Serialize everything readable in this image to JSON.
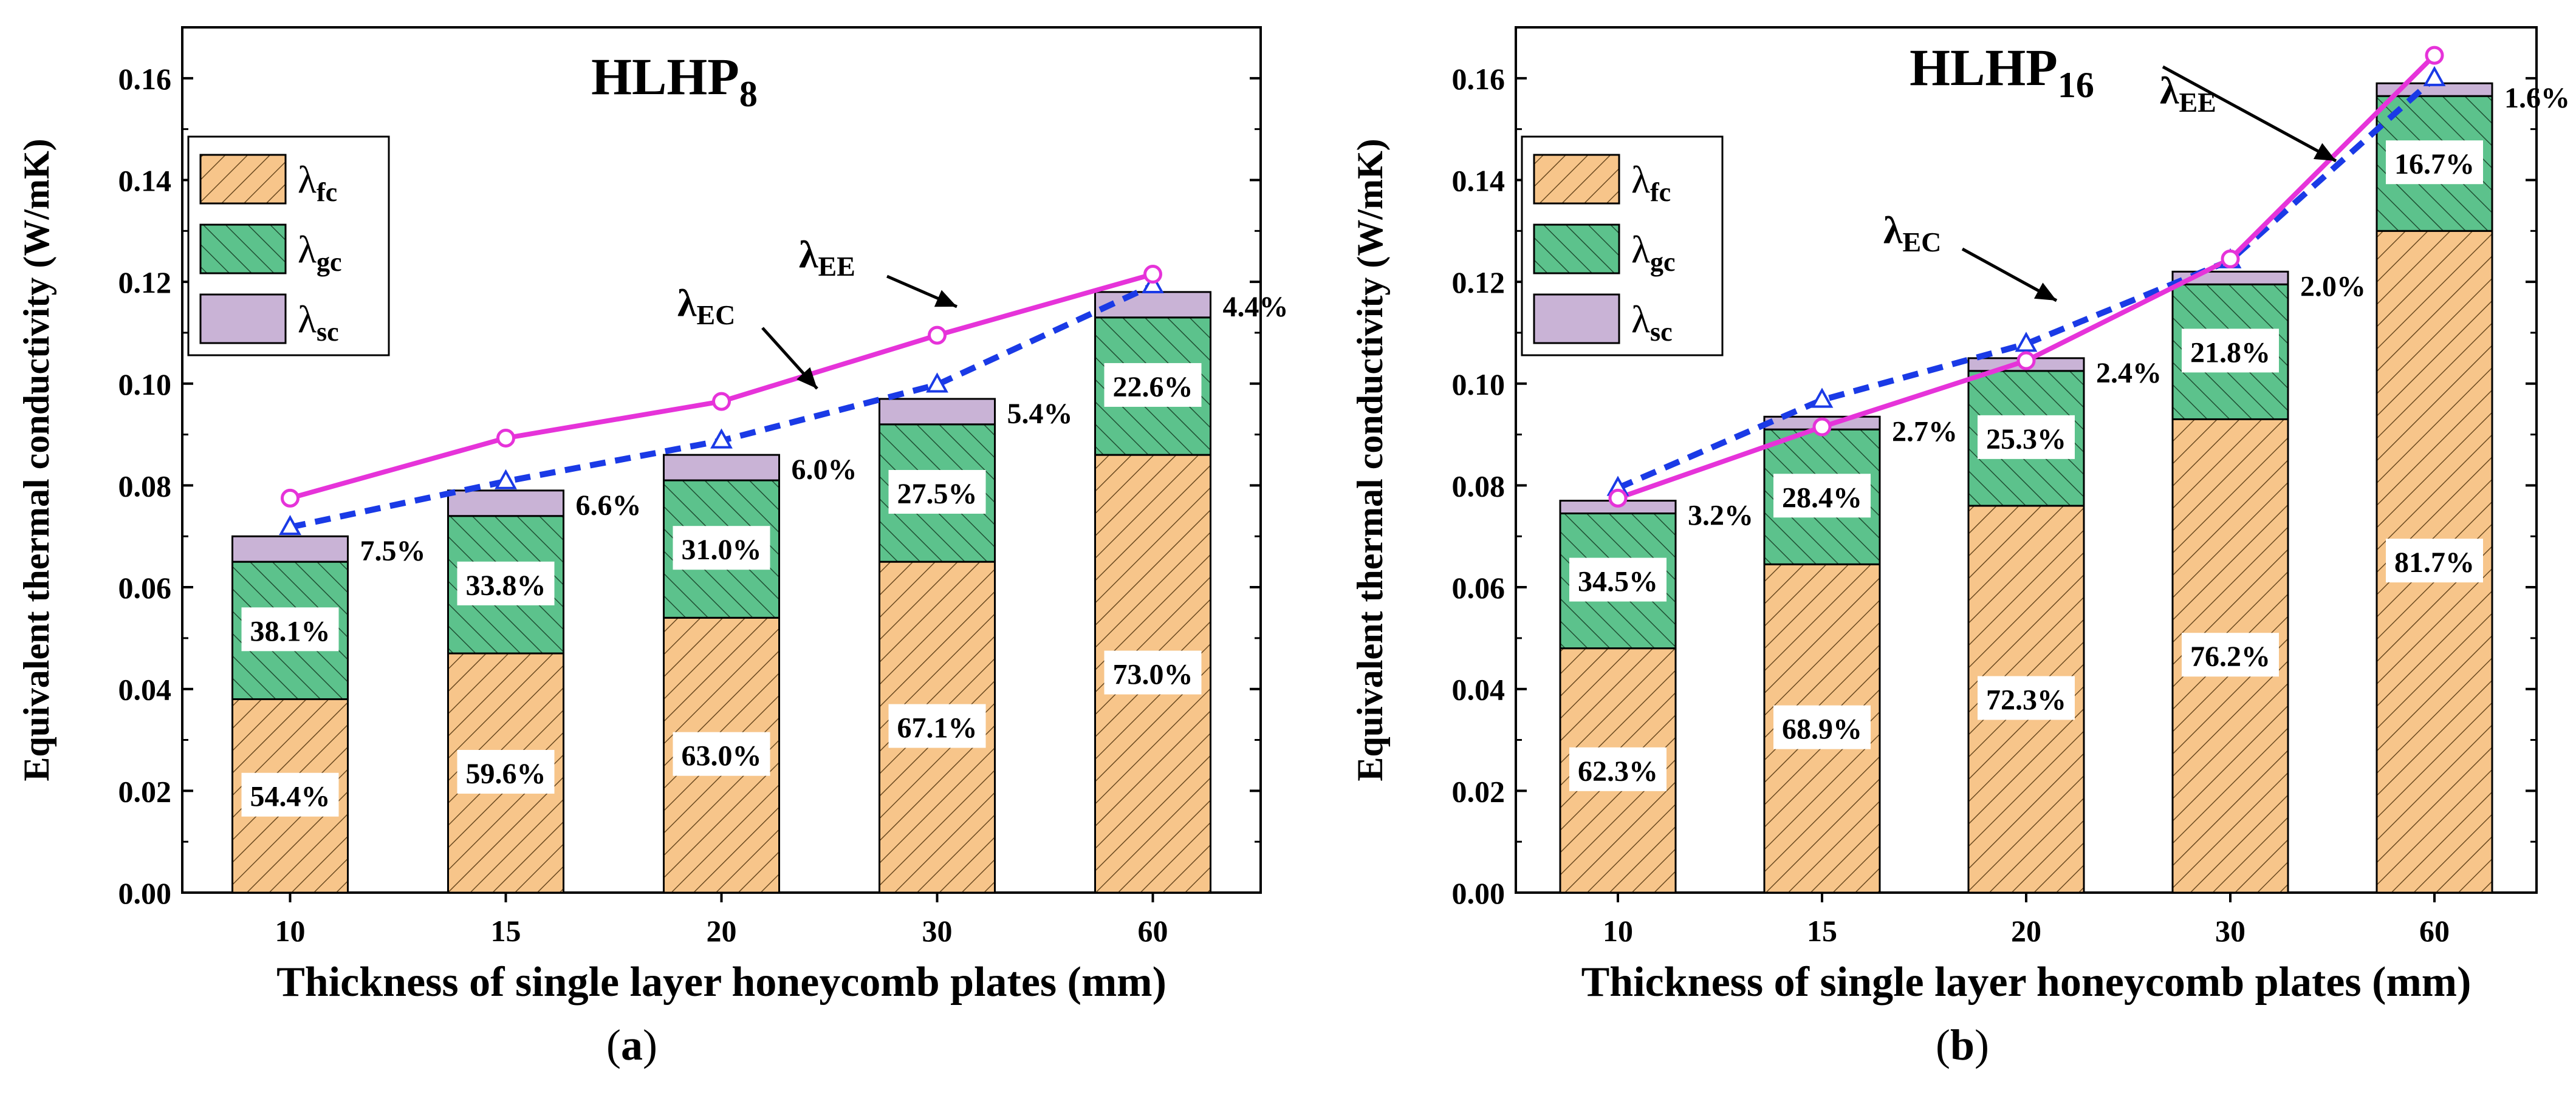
{
  "panels": [
    {
      "panel_label": "a",
      "title_main": "HLHP",
      "title_sub": "8",
      "ylabel": "Equivalent thermal conductivity (W/mK)",
      "xlabel": "Thickness of single layer honeycomb plates (mm)",
      "legend": [
        {
          "sym": "λ",
          "sub": "fc"
        },
        {
          "sym": "λ",
          "sub": "gc"
        },
        {
          "sym": "λ",
          "sub": "sc"
        }
      ],
      "ann_ee": {
        "sym": "λ",
        "sub": "EE"
      },
      "ann_ec": {
        "sym": "λ",
        "sub": "EC"
      }
    },
    {
      "panel_label": "b",
      "title_main": "HLHP",
      "title_sub": "16",
      "ylabel": "Equivalent thermal conductivity (W/mK)",
      "xlabel": "Thickness of single layer honeycomb plates (mm)",
      "legend": [
        {
          "sym": "λ",
          "sub": "fc"
        },
        {
          "sym": "λ",
          "sub": "gc"
        },
        {
          "sym": "λ",
          "sub": "sc"
        }
      ],
      "ann_ee": {
        "sym": "λ",
        "sub": "EE"
      },
      "ann_ec": {
        "sym": "λ",
        "sub": "EC"
      }
    }
  ],
  "colors": {
    "fc": "#f7c58a",
    "gc": "#5cc28c",
    "sc": "#c9b3d6",
    "ee": "#e633d9",
    "ec": "#1a3ae6"
  },
  "chart_data": [
    {
      "type": "bar",
      "title": "HLHP8",
      "categories": [
        "10",
        "15",
        "20",
        "30",
        "60"
      ],
      "ylim": [
        0,
        0.17
      ],
      "yticks": [
        "0.00",
        "0.02",
        "0.04",
        "0.06",
        "0.08",
        "0.10",
        "0.12",
        "0.14",
        "0.16"
      ],
      "series": [
        {
          "name": "λfc",
          "values": [
            0.038,
            0.047,
            0.054,
            0.065,
            0.086
          ],
          "labels": [
            "54.4%",
            "59.6%",
            "63.0%",
            "67.1%",
            "73.0%"
          ]
        },
        {
          "name": "λgc",
          "values": [
            0.027,
            0.027,
            0.027,
            0.027,
            0.027
          ],
          "labels": [
            "38.1%",
            "33.8%",
            "31.0%",
            "27.5%",
            "22.6%"
          ]
        },
        {
          "name": "λsc",
          "values": [
            0.005,
            0.005,
            0.005,
            0.005,
            0.005
          ],
          "labels": [
            "7.5%",
            "6.6%",
            "6.0%",
            "5.4%",
            "4.4%"
          ]
        }
      ],
      "lines": [
        {
          "name": "λEE",
          "values": [
            0.0775,
            0.0893,
            0.0965,
            0.1095,
            0.1215
          ]
        },
        {
          "name": "λEC",
          "values": [
            0.0718,
            0.0808,
            0.0888,
            0.0998,
            0.1193
          ]
        }
      ]
    },
    {
      "type": "bar",
      "title": "HLHP16",
      "categories": [
        "10",
        "15",
        "20",
        "30",
        "60"
      ],
      "ylim": [
        0,
        0.17
      ],
      "yticks": [
        "0.00",
        "0.02",
        "0.04",
        "0.06",
        "0.08",
        "0.10",
        "0.12",
        "0.14",
        "0.16"
      ],
      "series": [
        {
          "name": "λfc",
          "values": [
            0.048,
            0.0645,
            0.076,
            0.093,
            0.13
          ],
          "labels": [
            "62.3%",
            "68.9%",
            "72.3%",
            "76.2%",
            "81.7%"
          ]
        },
        {
          "name": "λgc",
          "values": [
            0.0265,
            0.0265,
            0.0265,
            0.0265,
            0.0265
          ],
          "labels": [
            "34.5%",
            "28.4%",
            "25.3%",
            "21.8%",
            "16.7%"
          ]
        },
        {
          "name": "λsc",
          "values": [
            0.0025,
            0.0025,
            0.0025,
            0.0025,
            0.0025
          ],
          "labels": [
            "3.2%",
            "2.7%",
            "2.4%",
            "2.0%",
            "1.6%"
          ]
        }
      ],
      "lines": [
        {
          "name": "λEE",
          "values": [
            0.0775,
            0.0915,
            0.1045,
            0.1245,
            0.1645
          ]
        },
        {
          "name": "λEC",
          "values": [
            0.0795,
            0.0968,
            0.1078,
            0.1242,
            0.16
          ]
        }
      ]
    }
  ]
}
